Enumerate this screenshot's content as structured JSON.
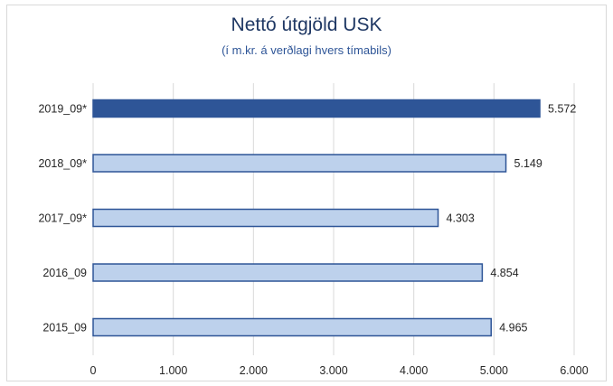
{
  "chart_data": {
    "type": "bar",
    "orientation": "horizontal",
    "title": "Nettó útgjöld USK",
    "subtitle": "(í m.kr. á verðlagi hvers tímabils)",
    "categories": [
      "2019_09*",
      "2018_09*",
      "2017_09*",
      "2016_09",
      "2015_09"
    ],
    "values": [
      5572,
      5149,
      4303,
      4854,
      4965
    ],
    "value_labels": [
      "5.572",
      "5.149",
      "4.303",
      "4.854",
      "4.965"
    ],
    "highlight_index": 0,
    "xlim": [
      0,
      6000
    ],
    "xticks": [
      0,
      1000,
      2000,
      3000,
      4000,
      5000,
      6000
    ],
    "xtick_labels": [
      "0",
      "1.000",
      "2.000",
      "3.000",
      "4.000",
      "5.000",
      "6.000"
    ],
    "grid": "vertical",
    "legend": "none",
    "colors": {
      "highlight_fill": "#2e5597",
      "bar_fill": "#bdd1ec",
      "bar_stroke": "#2e5597",
      "grid": "#d9d9d9",
      "title": "#1f3864",
      "subtitle": "#2e5597"
    }
  }
}
